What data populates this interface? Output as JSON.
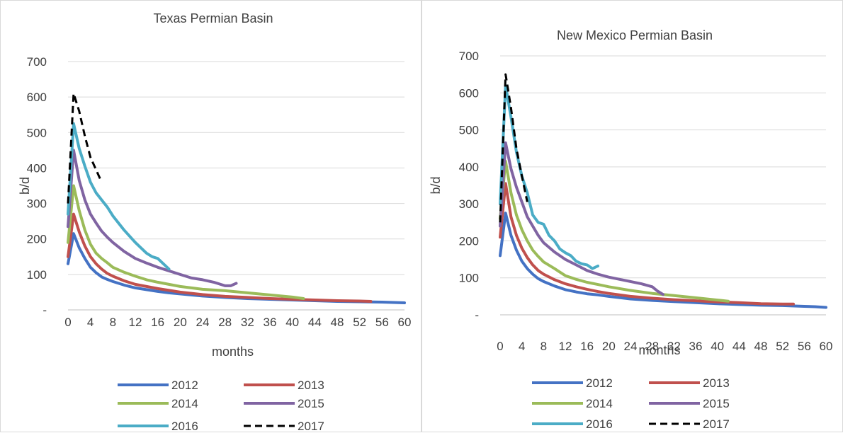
{
  "chart_data": [
    {
      "type": "line",
      "title": "Texas Permian Basin",
      "xlabel": "months",
      "ylabel": "b/d",
      "ylim": [
        0,
        700
      ],
      "xlim": [
        0,
        60
      ],
      "y_ticks": [
        "-",
        "100",
        "200",
        "300",
        "400",
        "500",
        "600",
        "700"
      ],
      "x_ticks": [
        "0",
        "4",
        "8",
        "12",
        "16",
        "20",
        "24",
        "28",
        "32",
        "36",
        "40",
        "44",
        "48",
        "52",
        "56",
        "60"
      ],
      "grid": true,
      "legend": "bottom",
      "series": [
        {
          "name": "2012",
          "color": "#4472C4",
          "dash": false,
          "x": [
            0,
            1,
            2,
            3,
            4,
            5,
            6,
            7,
            8,
            10,
            12,
            14,
            16,
            18,
            20,
            24,
            28,
            32,
            36,
            40,
            44,
            48,
            52,
            56,
            58,
            60
          ],
          "y": [
            130,
            215,
            175,
            145,
            120,
            105,
            93,
            86,
            80,
            70,
            62,
            57,
            52,
            48,
            45,
            39,
            35,
            32,
            30,
            28,
            26,
            24,
            23,
            22,
            21,
            20
          ]
        },
        {
          "name": "2013",
          "color": "#C0504D",
          "dash": false,
          "x": [
            0,
            1,
            2,
            3,
            4,
            5,
            6,
            7,
            8,
            10,
            12,
            14,
            16,
            18,
            20,
            24,
            28,
            32,
            36,
            40,
            44,
            48,
            52,
            54
          ],
          "y": [
            150,
            270,
            220,
            180,
            150,
            130,
            115,
            103,
            95,
            82,
            72,
            66,
            60,
            55,
            50,
            43,
            38,
            35,
            32,
            30,
            28,
            26,
            25,
            24
          ]
        },
        {
          "name": "2014",
          "color": "#9BBB59",
          "dash": false,
          "x": [
            0,
            1,
            2,
            3,
            4,
            5,
            6,
            7,
            8,
            10,
            12,
            14,
            16,
            18,
            20,
            24,
            28,
            32,
            36,
            40,
            42
          ],
          "y": [
            190,
            350,
            280,
            225,
            185,
            160,
            145,
            133,
            120,
            106,
            95,
            85,
            78,
            72,
            66,
            58,
            54,
            48,
            42,
            36,
            32
          ]
        },
        {
          "name": "2015",
          "color": "#8064A2",
          "dash": false,
          "x": [
            0,
            1,
            2,
            3,
            4,
            5,
            6,
            7,
            8,
            10,
            12,
            14,
            16,
            18,
            20,
            22,
            24,
            26,
            28,
            29,
            30
          ],
          "y": [
            235,
            450,
            365,
            310,
            270,
            245,
            222,
            205,
            190,
            165,
            145,
            132,
            120,
            110,
            100,
            90,
            85,
            78,
            68,
            68,
            75
          ]
        },
        {
          "name": "2016",
          "color": "#4BACC6",
          "dash": false,
          "x": [
            0,
            1,
            2,
            3,
            4,
            5,
            6,
            7,
            8,
            10,
            12,
            14,
            15,
            16,
            17,
            18
          ],
          "y": [
            270,
            525,
            455,
            405,
            360,
            330,
            310,
            290,
            265,
            225,
            190,
            160,
            150,
            145,
            130,
            115
          ]
        },
        {
          "name": "2017",
          "color": "#000000",
          "dash": true,
          "x": [
            0,
            1,
            2,
            3,
            4,
            5,
            6
          ],
          "y": [
            300,
            610,
            560,
            490,
            430,
            395,
            360
          ]
        }
      ]
    },
    {
      "type": "line",
      "title": "New Mexico Permian Basin",
      "xlabel": "months",
      "ylabel": "b/d",
      "ylim": [
        0,
        700
      ],
      "xlim": [
        0,
        60
      ],
      "y_ticks": [
        "-",
        "100",
        "200",
        "300",
        "400",
        "500",
        "600",
        "700"
      ],
      "x_ticks": [
        "0",
        "4",
        "8",
        "12",
        "16",
        "20",
        "24",
        "28",
        "32",
        "36",
        "40",
        "44",
        "48",
        "52",
        "56",
        "60"
      ],
      "grid": true,
      "legend": "bottom",
      "series": [
        {
          "name": "2012",
          "color": "#4472C4",
          "dash": false,
          "x": [
            0,
            1,
            2,
            3,
            4,
            5,
            6,
            7,
            8,
            10,
            12,
            14,
            16,
            18,
            20,
            24,
            28,
            32,
            36,
            40,
            44,
            48,
            52,
            56,
            58,
            60
          ],
          "y": [
            160,
            275,
            215,
            175,
            145,
            125,
            110,
            98,
            90,
            78,
            68,
            62,
            57,
            54,
            50,
            43,
            39,
            36,
            33,
            30,
            28,
            26,
            25,
            23,
            22,
            20
          ]
        },
        {
          "name": "2013",
          "color": "#C0504D",
          "dash": false,
          "x": [
            0,
            1,
            2,
            3,
            4,
            5,
            6,
            7,
            8,
            10,
            12,
            14,
            16,
            18,
            20,
            24,
            28,
            32,
            36,
            40,
            44,
            48,
            52,
            54
          ],
          "y": [
            210,
            355,
            265,
            215,
            180,
            155,
            135,
            120,
            110,
            95,
            84,
            76,
            69,
            63,
            58,
            50,
            45,
            41,
            38,
            35,
            33,
            30,
            29,
            29
          ]
        },
        {
          "name": "2014",
          "color": "#9BBB59",
          "dash": false,
          "x": [
            0,
            1,
            2,
            3,
            4,
            5,
            6,
            7,
            8,
            10,
            12,
            14,
            16,
            18,
            20,
            24,
            28,
            32,
            36,
            40,
            42
          ],
          "y": [
            260,
            415,
            330,
            270,
            230,
            200,
            175,
            158,
            143,
            125,
            106,
            96,
            88,
            82,
            76,
            66,
            58,
            52,
            46,
            40,
            37
          ]
        },
        {
          "name": "2015",
          "color": "#8064A2",
          "dash": false,
          "x": [
            0,
            1,
            2,
            3,
            4,
            5,
            6,
            7,
            8,
            10,
            12,
            14,
            16,
            18,
            20,
            22,
            24,
            26,
            28,
            29,
            30
          ],
          "y": [
            240,
            465,
            395,
            345,
            305,
            265,
            240,
            215,
            195,
            170,
            150,
            135,
            120,
            110,
            102,
            96,
            90,
            84,
            76,
            64,
            55
          ]
        },
        {
          "name": "2016",
          "color": "#4BACC6",
          "dash": false,
          "x": [
            0,
            1,
            2,
            3,
            4,
            5,
            6,
            7,
            8,
            9,
            10,
            11,
            12,
            13,
            14,
            15,
            16,
            17,
            18
          ],
          "y": [
            300,
            620,
            535,
            440,
            375,
            330,
            270,
            250,
            245,
            215,
            200,
            178,
            168,
            160,
            145,
            138,
            135,
            125,
            132
          ]
        },
        {
          "name": "2017",
          "color": "#000000",
          "dash": true,
          "x": [
            0,
            1,
            2,
            3,
            4,
            5
          ],
          "y": [
            250,
            650,
            560,
            450,
            375,
            305
          ]
        }
      ]
    }
  ]
}
